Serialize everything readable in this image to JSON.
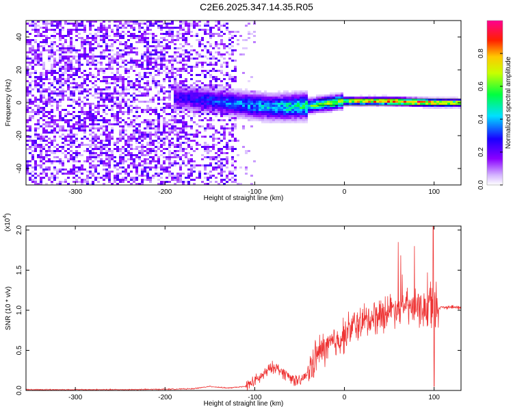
{
  "title": "C2E6.2025.347.14.35.R05",
  "chart_data": [
    {
      "type": "heatmap",
      "xlabel": "Height of straight line (km)",
      "ylabel": "Frequency (Hz)",
      "xlim": [
        -355,
        130
      ],
      "ylim": [
        -50,
        50
      ],
      "xticks": [
        -300,
        -200,
        -100,
        0,
        100
      ],
      "yticks": [
        -40,
        -20,
        0,
        20,
        40
      ],
      "grid": false,
      "colorbar": {
        "label": "Normalized spectral amplitude",
        "range": [
          0,
          1
        ],
        "ticks": [
          0.0,
          0.2,
          0.4,
          0.6,
          0.8
        ],
        "colors": [
          "#ffffff",
          "#c8a0ff",
          "#7a00ff",
          "#0000ff",
          "#00ffff",
          "#00ff00",
          "#ffff00",
          "#ff0000",
          "#ff0080"
        ]
      },
      "ridge": {
        "description_points": [
          {
            "x": -130,
            "y": 0,
            "amp": 0.35
          },
          {
            "x": -80,
            "y": -3,
            "amp": 0.45
          },
          {
            "x": -40,
            "y": -2,
            "amp": 0.55
          },
          {
            "x": 0,
            "y": 1,
            "amp": 0.7
          },
          {
            "x": 50,
            "y": 1,
            "amp": 0.9
          },
          {
            "x": 100,
            "y": 0,
            "amp": 0.9
          },
          {
            "x": 130,
            "y": 0,
            "amp": 0.7
          }
        ]
      }
    },
    {
      "type": "line",
      "xlabel": "Height of straight line (km)",
      "ylabel": "SNR (10 * v/v)",
      "yscale_label": "(x10",
      "yscale_exp": "4",
      "yscale_close": ")",
      "xlim": [
        -355,
        130
      ],
      "ylim": [
        0,
        2.05
      ],
      "xticks": [
        -300,
        -200,
        -100,
        0,
        100
      ],
      "yticks": [
        0.0,
        0.5,
        1.0,
        1.5,
        2.0
      ],
      "grid": false,
      "color": "#ee3333",
      "series": [
        {
          "x": [
            -355,
            -300,
            -250,
            -200,
            -170,
            -150,
            -130,
            -110,
            -95,
            -85,
            -78,
            -72,
            -65,
            -58,
            -50,
            -42,
            -35,
            -30,
            -25,
            -18,
            -10,
            0,
            10,
            20,
            30,
            40,
            50,
            60,
            70,
            80,
            90,
            95,
            100,
            105,
            110,
            120,
            130
          ],
          "values": [
            0.01,
            0.01,
            0.01,
            0.015,
            0.02,
            0.05,
            0.03,
            0.05,
            0.15,
            0.25,
            0.3,
            0.25,
            0.2,
            0.15,
            0.1,
            0.2,
            0.35,
            0.45,
            0.5,
            0.55,
            0.6,
            0.7,
            0.8,
            0.85,
            0.9,
            0.95,
            1.0,
            1.05,
            1.05,
            1.0,
            1.02,
            1.0,
            1.05,
            1.03,
            1.04,
            1.04,
            1.03
          ],
          "peaks": [
            {
              "x": 60,
              "y": 1.85
            },
            {
              "x": 78,
              "y": 1.8
            },
            {
              "x": 99,
              "y": 2.05
            },
            {
              "x": 100,
              "y": 0.05
            }
          ]
        }
      ]
    }
  ]
}
